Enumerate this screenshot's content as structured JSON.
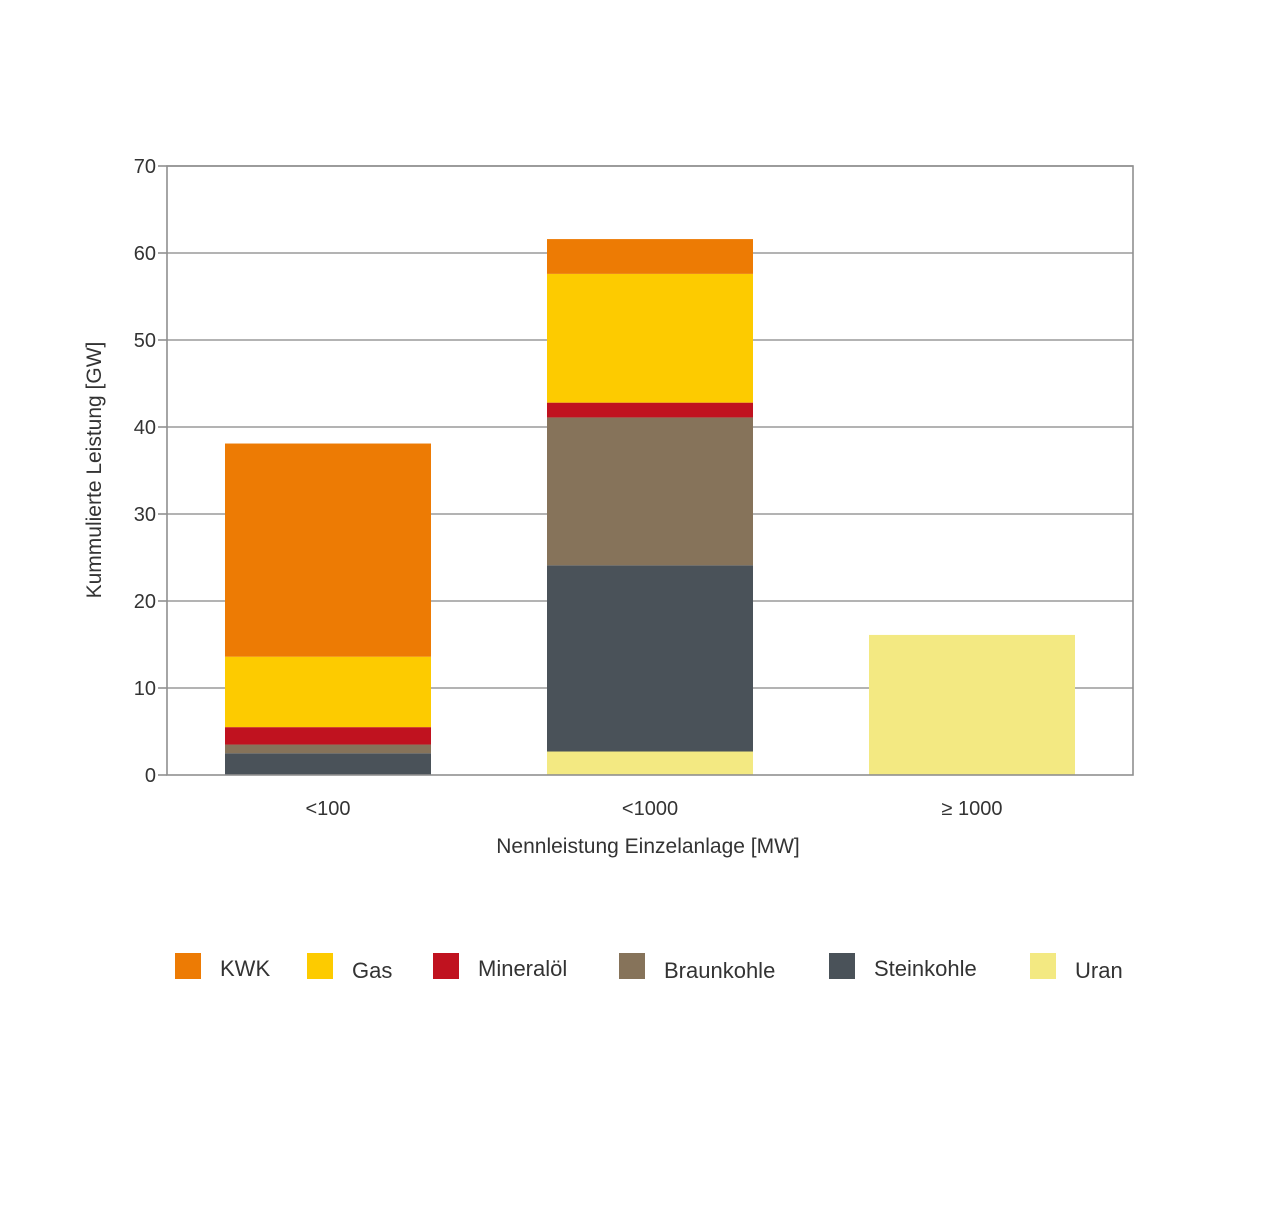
{
  "chart_data": {
    "type": "bar",
    "stacked": true,
    "xlabel": "Nennleistung Einzelanlage [MW]",
    "ylabel": "Kummulierte Leistung [GW]",
    "ylim": [
      0,
      70
    ],
    "yticks": [
      "0",
      "10",
      "20",
      "30",
      "40",
      "50",
      "60",
      "70"
    ],
    "grid": true,
    "legend_position": "bottom",
    "categories": [
      "<100",
      "<1000",
      "≥ 1000"
    ],
    "series": [
      {
        "name": "Uran",
        "color": "#f3e982",
        "values": [
          0,
          2.7,
          16.1
        ]
      },
      {
        "name": "Steinkohle",
        "color": "#4a5259",
        "values": [
          2.5,
          21.4,
          0
        ]
      },
      {
        "name": "Braunkohle",
        "color": "#86735a",
        "values": [
          1.0,
          17.0,
          0
        ]
      },
      {
        "name": "Mineralöl",
        "color": "#c0121f",
        "values": [
          2.0,
          1.7,
          0
        ]
      },
      {
        "name": "Gas",
        "color": "#fdcb00",
        "values": [
          8.1,
          14.8,
          0
        ]
      },
      {
        "name": "KWK",
        "color": "#ed7b04",
        "values": [
          24.5,
          4.0,
          0
        ]
      }
    ],
    "legend_order": [
      "KWK",
      "Gas",
      "Mineralöl",
      "Braunkohle",
      "Steinkohle",
      "Uran"
    ]
  }
}
